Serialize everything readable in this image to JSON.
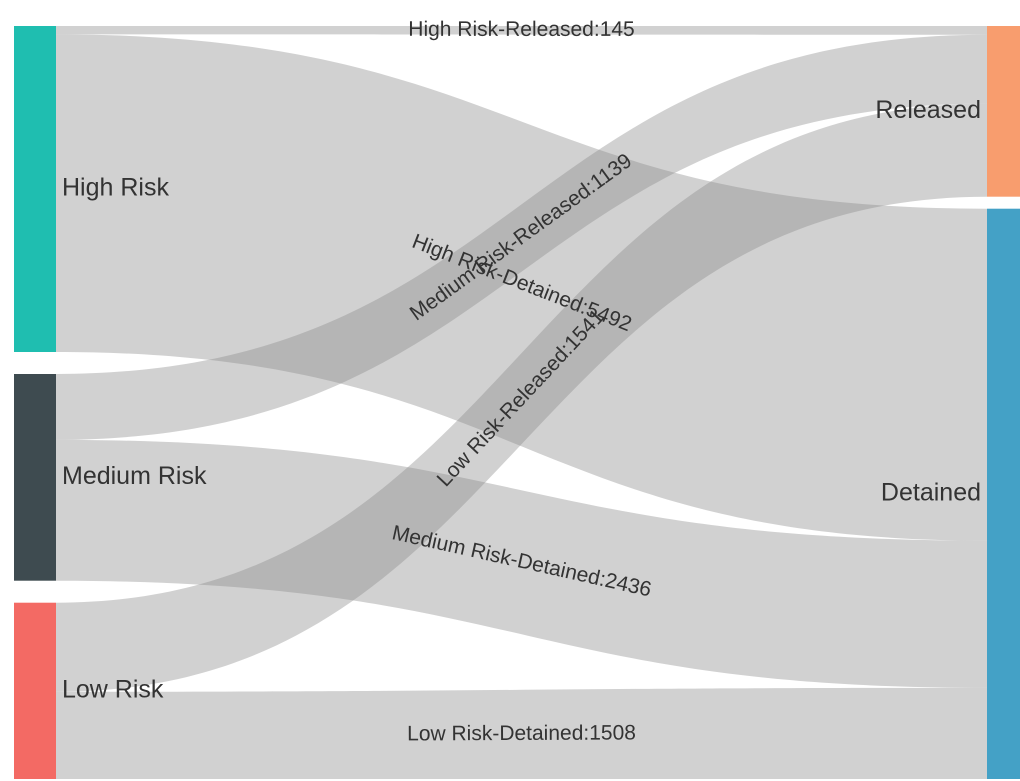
{
  "chart_data": {
    "type": "sankey",
    "nodes": [
      {
        "id": "high",
        "label": "High Risk",
        "color": "#1fbeb0"
      },
      {
        "id": "medium",
        "label": "Medium Risk",
        "color": "#3e4b50"
      },
      {
        "id": "low",
        "label": "Low Risk",
        "color": "#f36a64"
      },
      {
        "id": "released",
        "label": "Released",
        "color": "#f89d6e"
      },
      {
        "id": "detained",
        "label": "Detained",
        "color": "#44a1c6"
      }
    ],
    "links": [
      {
        "source": "high",
        "target": "released",
        "value": 145,
        "label": "High Risk-Released:145"
      },
      {
        "source": "high",
        "target": "detained",
        "value": 5492,
        "label": "High Risk-Detained:5492"
      },
      {
        "source": "medium",
        "target": "released",
        "value": 1139,
        "label": "Medium Risk-Released:1139"
      },
      {
        "source": "medium",
        "target": "detained",
        "value": 2436,
        "label": "Medium Risk-Detained:2436"
      },
      {
        "source": "low",
        "target": "released",
        "value": 1541,
        "label": "Low Risk-Released:1541"
      },
      {
        "source": "low",
        "target": "detained",
        "value": 1508,
        "label": "Low Risk-Detained:1508"
      }
    ]
  }
}
